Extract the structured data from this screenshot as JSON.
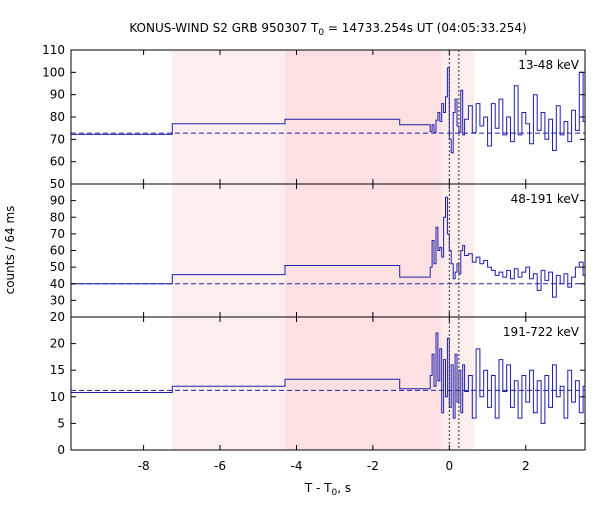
{
  "chart_data": {
    "type": "line",
    "title_parts": {
      "prefix": "KONUS-WIND S2 GRB 950307 T",
      "subscript": "0",
      "suffix": " = 14733.254s UT (04:05:33.254)"
    },
    "ylabel": "counts / 64 ms",
    "xlabel_parts": {
      "prefix": "T - T",
      "subscript": "0",
      "suffix": ", s"
    },
    "xlim": [
      -9.9,
      3.55
    ],
    "xticks": [
      -8,
      -6,
      -4,
      -2,
      0,
      2
    ],
    "xtick_labels": [
      "-8",
      "-6",
      "-4",
      "-2",
      "0",
      "2"
    ],
    "colors": {
      "series": "#1f1faa",
      "shade_light": "#fdeeee",
      "shade_dark": "#fde0e2",
      "axes": "#000000",
      "marker_lines": "#333333"
    },
    "shaded_intervals": [
      {
        "from": -7.25,
        "to": -4.3,
        "shade": "light"
      },
      {
        "from": -4.3,
        "to": -0.2,
        "shade": "dark"
      },
      {
        "from": -0.2,
        "to": 0.65,
        "shade": "light"
      }
    ],
    "vertical_dotted_lines": [
      0.0,
      0.25
    ],
    "panels": [
      {
        "energy_label": "13-48 keV",
        "ylim": [
          50,
          110
        ],
        "yticks": [
          50,
          60,
          70,
          80,
          90,
          100,
          110
        ],
        "ytick_labels": [
          "50",
          "60",
          "70",
          "80",
          "90",
          "100",
          "110"
        ],
        "background": 72.8,
        "steps": [
          [
            -9.9,
            72.2
          ],
          [
            -7.25,
            77.0
          ],
          [
            -4.3,
            79.0
          ],
          [
            -1.3,
            76.5
          ],
          [
            -0.5,
            73.5
          ],
          [
            -0.45,
            76.5
          ],
          [
            -0.4,
            73.0
          ],
          [
            -0.35,
            78.5
          ],
          [
            -0.3,
            82.0
          ],
          [
            -0.25,
            78.0
          ],
          [
            -0.2,
            86.0
          ],
          [
            -0.15,
            82.0
          ],
          [
            -0.1,
            89.0
          ],
          [
            -0.05,
            102.0
          ],
          [
            0.0,
            70.0
          ],
          [
            0.05,
            64.0
          ],
          [
            0.1,
            82.0
          ],
          [
            0.15,
            88.0
          ],
          [
            0.2,
            76.0
          ],
          [
            0.25,
            73.0
          ],
          [
            0.3,
            92.0
          ],
          [
            0.35,
            72.0
          ],
          [
            0.4,
            79.0
          ],
          [
            0.5,
            85.0
          ],
          [
            0.6,
            73.0
          ],
          [
            0.7,
            86.0
          ],
          [
            0.8,
            76.0
          ],
          [
            0.9,
            80.0
          ],
          [
            1.0,
            67.0
          ],
          [
            1.1,
            86.0
          ],
          [
            1.2,
            75.0
          ],
          [
            1.3,
            88.0
          ],
          [
            1.4,
            72.0
          ],
          [
            1.5,
            80.0
          ],
          [
            1.6,
            69.0
          ],
          [
            1.7,
            94.0
          ],
          [
            1.8,
            72.0
          ],
          [
            1.9,
            82.0
          ],
          [
            2.0,
            77.0
          ],
          [
            2.1,
            68.0
          ],
          [
            2.2,
            90.0
          ],
          [
            2.3,
            74.0
          ],
          [
            2.4,
            82.0
          ],
          [
            2.5,
            70.0
          ],
          [
            2.6,
            79.0
          ],
          [
            2.7,
            65.0
          ],
          [
            2.8,
            85.0
          ],
          [
            2.9,
            72.0
          ],
          [
            3.0,
            78.0
          ],
          [
            3.1,
            69.0
          ],
          [
            3.2,
            83.0
          ],
          [
            3.3,
            74.0
          ],
          [
            3.4,
            100.0
          ],
          [
            3.5,
            78.0
          ]
        ]
      },
      {
        "energy_label": "48-191 keV",
        "ylim": [
          20,
          100
        ],
        "yticks": [
          20,
          30,
          40,
          50,
          60,
          70,
          80,
          90
        ],
        "ytick_labels": [
          "20",
          "30",
          "40",
          "50",
          "60",
          "70",
          "80",
          "90"
        ],
        "background": 40.0,
        "steps": [
          [
            -9.9,
            40.0
          ],
          [
            -7.25,
            45.5
          ],
          [
            -4.3,
            51.0
          ],
          [
            -1.3,
            44.0
          ],
          [
            -0.5,
            50.0
          ],
          [
            -0.45,
            66.0
          ],
          [
            -0.4,
            52.0
          ],
          [
            -0.35,
            74.0
          ],
          [
            -0.3,
            60.0
          ],
          [
            -0.25,
            62.0
          ],
          [
            -0.2,
            56.0
          ],
          [
            -0.15,
            80.0
          ],
          [
            -0.1,
            92.0
          ],
          [
            -0.05,
            70.0
          ],
          [
            0.0,
            60.0
          ],
          [
            0.05,
            52.0
          ],
          [
            0.1,
            43.0
          ],
          [
            0.15,
            47.0
          ],
          [
            0.2,
            52.0
          ],
          [
            0.25,
            46.0
          ],
          [
            0.3,
            60.0
          ],
          [
            0.35,
            63.0
          ],
          [
            0.4,
            57.0
          ],
          [
            0.5,
            58.0
          ],
          [
            0.6,
            53.0
          ],
          [
            0.7,
            56.0
          ],
          [
            0.8,
            52.0
          ],
          [
            0.9,
            54.0
          ],
          [
            1.0,
            50.0
          ],
          [
            1.1,
            48.0
          ],
          [
            1.2,
            45.0
          ],
          [
            1.3,
            47.0
          ],
          [
            1.4,
            44.0
          ],
          [
            1.5,
            48.0
          ],
          [
            1.6,
            43.0
          ],
          [
            1.7,
            49.0
          ],
          [
            1.8,
            44.0
          ],
          [
            1.9,
            47.0
          ],
          [
            2.0,
            50.0
          ],
          [
            2.1,
            43.0
          ],
          [
            2.2,
            46.0
          ],
          [
            2.3,
            36.0
          ],
          [
            2.4,
            48.0
          ],
          [
            2.5,
            42.0
          ],
          [
            2.6,
            47.0
          ],
          [
            2.7,
            32.0
          ],
          [
            2.8,
            45.0
          ],
          [
            2.9,
            40.0
          ],
          [
            3.0,
            46.0
          ],
          [
            3.1,
            38.0
          ],
          [
            3.2,
            44.0
          ],
          [
            3.3,
            50.0
          ],
          [
            3.4,
            53.0
          ],
          [
            3.5,
            45.0
          ]
        ]
      },
      {
        "energy_label": "191-722 keV",
        "ylim": [
          0,
          25
        ],
        "yticks": [
          0,
          5,
          10,
          15,
          20
        ],
        "ytick_labels": [
          "0",
          "5",
          "10",
          "15",
          "20"
        ],
        "background": 11.2,
        "steps": [
          [
            -9.9,
            10.8
          ],
          [
            -7.25,
            12.0
          ],
          [
            -4.3,
            13.3
          ],
          [
            -1.3,
            11.5
          ],
          [
            -0.5,
            14.0
          ],
          [
            -0.45,
            18.0
          ],
          [
            -0.4,
            12.0
          ],
          [
            -0.35,
            22.0
          ],
          [
            -0.3,
            13.0
          ],
          [
            -0.25,
            19.0
          ],
          [
            -0.2,
            7.0
          ],
          [
            -0.15,
            17.0
          ],
          [
            -0.1,
            10.0
          ],
          [
            -0.05,
            21.0
          ],
          [
            0.0,
            8.0
          ],
          [
            0.05,
            16.0
          ],
          [
            0.1,
            6.0
          ],
          [
            0.15,
            18.0
          ],
          [
            0.2,
            9.0
          ],
          [
            0.25,
            15.0
          ],
          [
            0.3,
            7.0
          ],
          [
            0.35,
            16.0
          ],
          [
            0.4,
            11.0
          ],
          [
            0.5,
            14.0
          ],
          [
            0.6,
            6.0
          ],
          [
            0.7,
            19.0
          ],
          [
            0.8,
            10.0
          ],
          [
            0.9,
            15.0
          ],
          [
            1.0,
            8.0
          ],
          [
            1.1,
            14.0
          ],
          [
            1.2,
            6.0
          ],
          [
            1.3,
            17.0
          ],
          [
            1.4,
            11.0
          ],
          [
            1.5,
            16.0
          ],
          [
            1.6,
            8.0
          ],
          [
            1.7,
            13.0
          ],
          [
            1.8,
            6.0
          ],
          [
            1.9,
            14.0
          ],
          [
            2.0,
            9.0
          ],
          [
            2.1,
            15.0
          ],
          [
            2.2,
            7.0
          ],
          [
            2.3,
            13.0
          ],
          [
            2.4,
            5.0
          ],
          [
            2.5,
            14.0
          ],
          [
            2.6,
            8.0
          ],
          [
            2.7,
            16.0
          ],
          [
            2.8,
            10.0
          ],
          [
            2.9,
            12.0
          ],
          [
            3.0,
            6.0
          ],
          [
            3.1,
            15.0
          ],
          [
            3.2,
            9.0
          ],
          [
            3.3,
            13.0
          ],
          [
            3.4,
            7.0
          ],
          [
            3.5,
            12.0
          ]
        ]
      }
    ]
  }
}
